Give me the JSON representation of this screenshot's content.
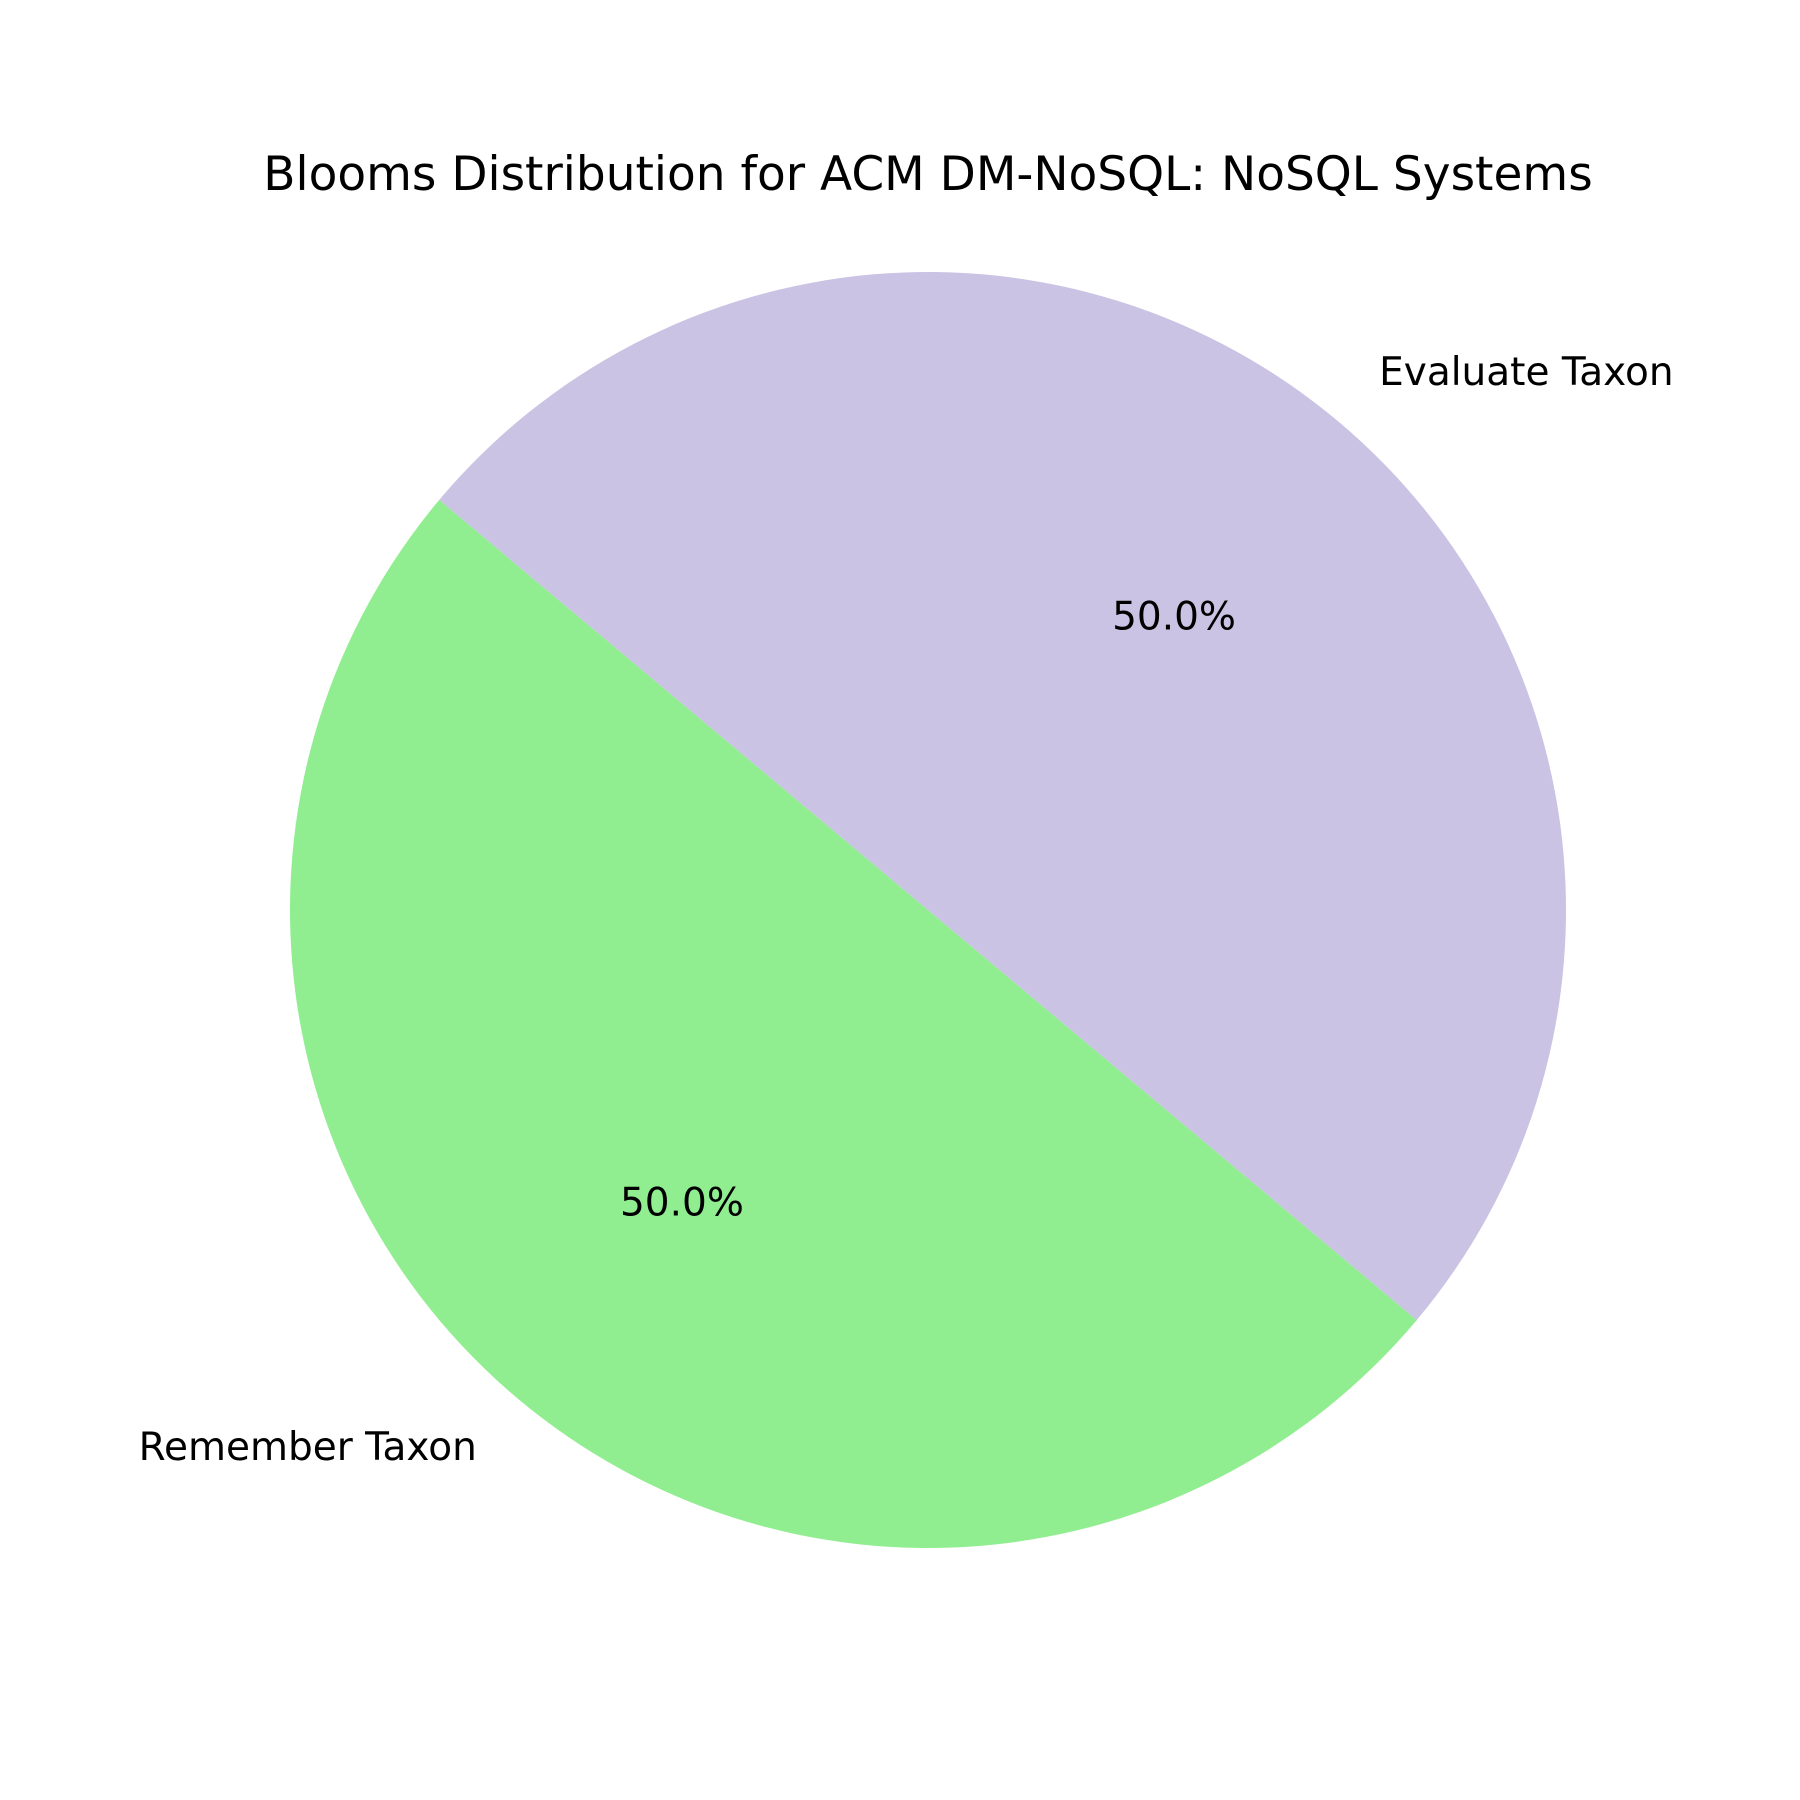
{
  "chart_data": {
    "type": "pie",
    "title": "Blooms Distribution for ACM DM-NoSQL: NoSQL Systems",
    "slices": [
      {
        "label": "Remember Taxon",
        "value": 50.0,
        "pct_label": "50.0%",
        "color": "#90ee90"
      },
      {
        "label": "Evaluate Taxon",
        "value": 50.0,
        "pct_label": "50.0%",
        "color": "#cbc3e3"
      }
    ],
    "start_angle_deg": 140,
    "direction": "counterclockwise",
    "legend": "none"
  }
}
